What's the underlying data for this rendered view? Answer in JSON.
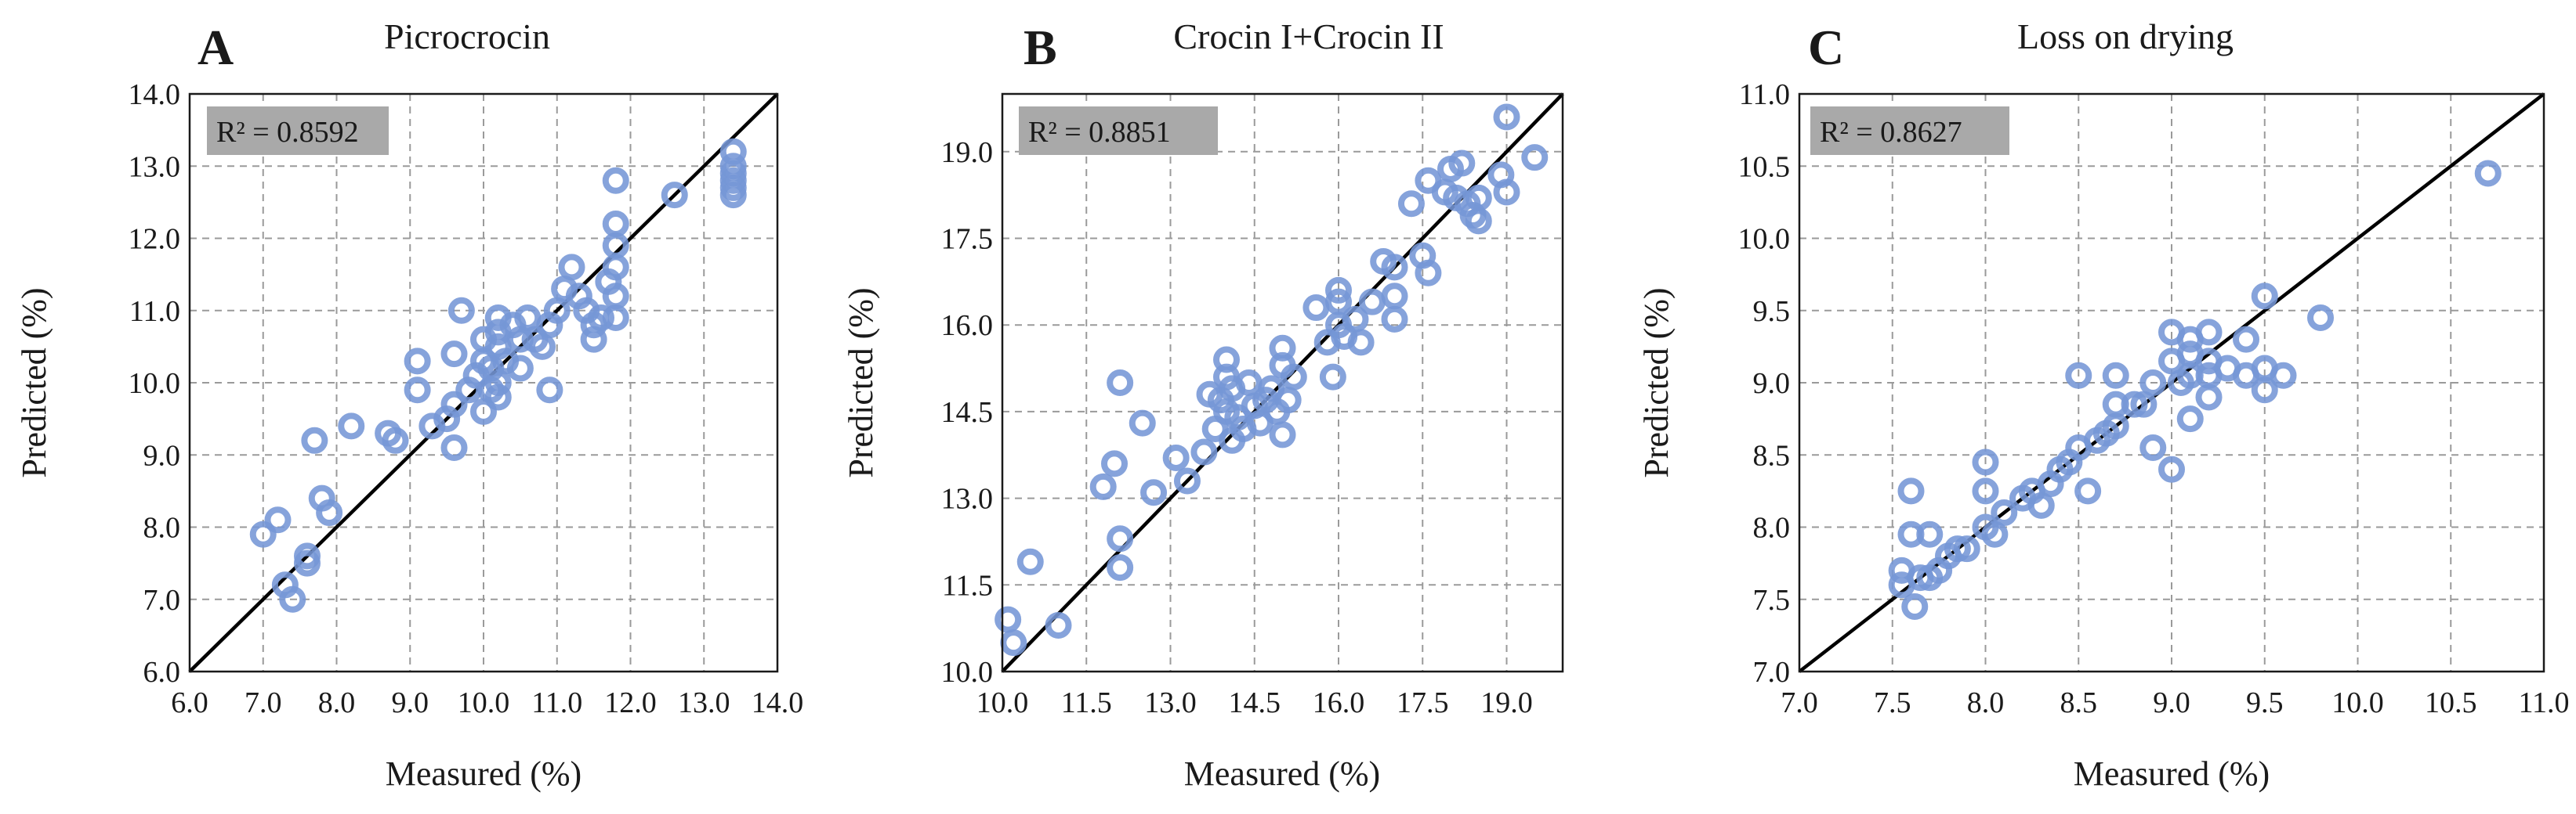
{
  "chart_data": [
    {
      "type": "scatter",
      "panel_label": "A",
      "title": "Picrocrocin",
      "xlabel": "Measured (%)",
      "ylabel": "Predicted (%)",
      "r2_label": "R² = 0.8592",
      "xlim": [
        6.0,
        14.0
      ],
      "ylim": [
        6.0,
        14.0
      ],
      "x_ticks": [
        "6.0",
        "7.0",
        "8.0",
        "9.0",
        "10.0",
        "11.0",
        "12.0",
        "13.0",
        "14.0"
      ],
      "y_ticks": [
        "6.0",
        "7.0",
        "8.0",
        "9.0",
        "10.0",
        "11.0",
        "12.0",
        "13.0",
        "14.0"
      ],
      "x_tick_values": [
        6,
        7,
        8,
        9,
        10,
        11,
        12,
        13,
        14
      ],
      "y_tick_values": [
        6,
        7,
        8,
        9,
        10,
        11,
        12,
        13,
        14
      ],
      "grid": true,
      "reference_line": "y = x",
      "points": [
        [
          7.0,
          7.9
        ],
        [
          7.2,
          8.1
        ],
        [
          7.3,
          7.2
        ],
        [
          7.4,
          7.0
        ],
        [
          7.6,
          7.5
        ],
        [
          7.6,
          7.6
        ],
        [
          7.7,
          9.2
        ],
        [
          7.8,
          8.4
        ],
        [
          7.9,
          8.2
        ],
        [
          8.2,
          9.4
        ],
        [
          8.7,
          9.3
        ],
        [
          8.8,
          9.2
        ],
        [
          9.1,
          9.9
        ],
        [
          9.1,
          10.3
        ],
        [
          9.3,
          9.4
        ],
        [
          9.5,
          9.5
        ],
        [
          9.6,
          9.1
        ],
        [
          9.6,
          9.7
        ],
        [
          9.6,
          10.4
        ],
        [
          9.7,
          11.0
        ],
        [
          9.8,
          9.9
        ],
        [
          9.9,
          10.1
        ],
        [
          10.0,
          9.6
        ],
        [
          10.0,
          10.3
        ],
        [
          10.0,
          10.6
        ],
        [
          10.1,
          9.9
        ],
        [
          10.1,
          10.2
        ],
        [
          10.2,
          10.9
        ],
        [
          10.2,
          10.7
        ],
        [
          10.2,
          10.5
        ],
        [
          10.2,
          10.0
        ],
        [
          10.2,
          9.8
        ],
        [
          10.3,
          10.3
        ],
        [
          10.4,
          10.8
        ],
        [
          10.5,
          10.6
        ],
        [
          10.5,
          10.2
        ],
        [
          10.6,
          10.9
        ],
        [
          10.7,
          10.6
        ],
        [
          10.8,
          10.5
        ],
        [
          10.9,
          10.8
        ],
        [
          10.9,
          9.9
        ],
        [
          11.0,
          11.0
        ],
        [
          11.1,
          11.3
        ],
        [
          11.2,
          11.6
        ],
        [
          11.3,
          11.2
        ],
        [
          11.4,
          11.0
        ],
        [
          11.5,
          10.6
        ],
        [
          11.5,
          10.8
        ],
        [
          11.6,
          10.9
        ],
        [
          11.7,
          11.4
        ],
        [
          11.8,
          11.6
        ],
        [
          11.8,
          11.9
        ],
        [
          11.8,
          12.2
        ],
        [
          11.8,
          12.8
        ],
        [
          11.8,
          11.2
        ],
        [
          11.8,
          10.9
        ],
        [
          12.6,
          12.6
        ],
        [
          13.4,
          12.6
        ],
        [
          13.4,
          12.7
        ],
        [
          13.4,
          12.8
        ],
        [
          13.4,
          12.9
        ],
        [
          13.4,
          13.0
        ],
        [
          13.4,
          13.2
        ]
      ]
    },
    {
      "type": "scatter",
      "panel_label": "B",
      "title": "Crocin I+Crocin II",
      "xlabel": "Measured (%)",
      "ylabel": "Predicted (%)",
      "r2_label": "R² = 0.8851",
      "xlim": [
        10.0,
        20.0
      ],
      "ylim": [
        10.0,
        20.0
      ],
      "x_ticks": [
        "10.0",
        "11.5",
        "13.0",
        "14.5",
        "16.0",
        "17.5",
        "19.0"
      ],
      "y_ticks": [
        "10.0",
        "11.5",
        "13.0",
        "14.5",
        "16.0",
        "17.5",
        "19.0"
      ],
      "x_tick_values": [
        10.0,
        11.5,
        13.0,
        14.5,
        16.0,
        17.5,
        19.0
      ],
      "y_tick_values": [
        10.0,
        11.5,
        13.0,
        14.5,
        16.0,
        17.5,
        19.0
      ],
      "grid": true,
      "reference_line": "y = x",
      "points": [
        [
          10.1,
          10.9
        ],
        [
          10.2,
          10.5
        ],
        [
          10.5,
          11.9
        ],
        [
          11.0,
          10.8
        ],
        [
          11.8,
          13.2
        ],
        [
          12.0,
          13.6
        ],
        [
          12.1,
          12.3
        ],
        [
          12.1,
          11.8
        ],
        [
          12.1,
          15.0
        ],
        [
          12.5,
          14.3
        ],
        [
          12.7,
          13.1
        ],
        [
          13.1,
          13.7
        ],
        [
          13.3,
          13.3
        ],
        [
          13.6,
          13.8
        ],
        [
          13.7,
          14.8
        ],
        [
          13.8,
          14.2
        ],
        [
          13.9,
          14.7
        ],
        [
          14.0,
          15.4
        ],
        [
          14.0,
          15.1
        ],
        [
          14.0,
          14.5
        ],
        [
          14.1,
          14.9
        ],
        [
          14.1,
          14.0
        ],
        [
          14.2,
          14.4
        ],
        [
          14.3,
          14.2
        ],
        [
          14.4,
          15.0
        ],
        [
          14.5,
          14.6
        ],
        [
          14.6,
          14.3
        ],
        [
          14.7,
          14.7
        ],
        [
          14.8,
          14.9
        ],
        [
          14.9,
          14.5
        ],
        [
          15.0,
          15.6
        ],
        [
          15.0,
          15.3
        ],
        [
          15.0,
          14.1
        ],
        [
          15.1,
          14.7
        ],
        [
          15.2,
          15.1
        ],
        [
          15.6,
          16.3
        ],
        [
          15.8,
          15.7
        ],
        [
          15.9,
          15.1
        ],
        [
          16.0,
          16.4
        ],
        [
          16.0,
          16.0
        ],
        [
          16.0,
          16.6
        ],
        [
          16.1,
          15.8
        ],
        [
          16.3,
          16.1
        ],
        [
          16.4,
          15.7
        ],
        [
          16.6,
          16.4
        ],
        [
          16.8,
          17.1
        ],
        [
          17.0,
          16.5
        ],
        [
          17.0,
          16.1
        ],
        [
          17.0,
          17.0
        ],
        [
          17.3,
          18.1
        ],
        [
          17.5,
          17.2
        ],
        [
          17.6,
          18.5
        ],
        [
          17.6,
          16.9
        ],
        [
          17.9,
          18.3
        ],
        [
          18.0,
          18.7
        ],
        [
          18.1,
          18.2
        ],
        [
          18.2,
          18.8
        ],
        [
          18.3,
          18.1
        ],
        [
          18.4,
          17.9
        ],
        [
          18.5,
          18.2
        ],
        [
          18.5,
          17.8
        ],
        [
          18.9,
          18.6
        ],
        [
          19.0,
          18.3
        ],
        [
          19.0,
          19.6
        ],
        [
          19.5,
          18.9
        ]
      ]
    },
    {
      "type": "scatter",
      "panel_label": "C",
      "title": "Loss on drying",
      "xlabel": "Measured (%)",
      "ylabel": "Predicted (%)",
      "r2_label": "R² = 0.8627",
      "xlim": [
        7.0,
        11.0
      ],
      "ylim": [
        7.0,
        11.0
      ],
      "x_ticks": [
        "7.0",
        "7.5",
        "8.0",
        "8.5",
        "9.0",
        "9.5",
        "10.0",
        "10.5",
        "11.0"
      ],
      "y_ticks": [
        "7.0",
        "7.5",
        "8.0",
        "8.5",
        "9.0",
        "9.5",
        "10.0",
        "10.5",
        "11.0"
      ],
      "x_tick_values": [
        7.0,
        7.5,
        8.0,
        8.5,
        9.0,
        9.5,
        10.0,
        10.5,
        11.0
      ],
      "y_tick_values": [
        7.0,
        7.5,
        8.0,
        8.5,
        9.0,
        9.5,
        10.0,
        10.5,
        11.0
      ],
      "grid": true,
      "reference_line": "y = x",
      "points": [
        [
          7.55,
          7.7
        ],
        [
          7.55,
          7.6
        ],
        [
          7.6,
          8.25
        ],
        [
          7.6,
          7.95
        ],
        [
          7.62,
          7.45
        ],
        [
          7.65,
          7.65
        ],
        [
          7.7,
          7.95
        ],
        [
          7.7,
          7.65
        ],
        [
          7.75,
          7.7
        ],
        [
          7.8,
          7.8
        ],
        [
          7.85,
          7.85
        ],
        [
          7.9,
          7.85
        ],
        [
          8.0,
          8.45
        ],
        [
          8.0,
          8.25
        ],
        [
          8.0,
          8.0
        ],
        [
          8.05,
          7.95
        ],
        [
          8.1,
          8.1
        ],
        [
          8.2,
          8.2
        ],
        [
          8.25,
          8.25
        ],
        [
          8.3,
          8.15
        ],
        [
          8.35,
          8.3
        ],
        [
          8.4,
          8.4
        ],
        [
          8.45,
          8.45
        ],
        [
          8.5,
          9.05
        ],
        [
          8.5,
          8.55
        ],
        [
          8.55,
          8.25
        ],
        [
          8.6,
          8.6
        ],
        [
          8.65,
          8.65
        ],
        [
          8.7,
          9.05
        ],
        [
          8.7,
          8.85
        ],
        [
          8.7,
          8.7
        ],
        [
          8.8,
          8.85
        ],
        [
          8.85,
          8.85
        ],
        [
          8.9,
          9.0
        ],
        [
          8.9,
          8.55
        ],
        [
          9.0,
          9.35
        ],
        [
          9.0,
          9.15
        ],
        [
          9.0,
          8.4
        ],
        [
          9.05,
          9.0
        ],
        [
          9.1,
          9.3
        ],
        [
          9.1,
          9.2
        ],
        [
          9.1,
          9.05
        ],
        [
          9.1,
          8.75
        ],
        [
          9.2,
          9.35
        ],
        [
          9.2,
          9.15
        ],
        [
          9.2,
          9.05
        ],
        [
          9.2,
          8.9
        ],
        [
          9.3,
          9.1
        ],
        [
          9.4,
          9.3
        ],
        [
          9.4,
          9.05
        ],
        [
          9.5,
          9.6
        ],
        [
          9.5,
          9.1
        ],
        [
          9.5,
          8.95
        ],
        [
          9.6,
          9.05
        ],
        [
          9.8,
          9.45
        ],
        [
          10.7,
          10.45
        ]
      ]
    }
  ]
}
